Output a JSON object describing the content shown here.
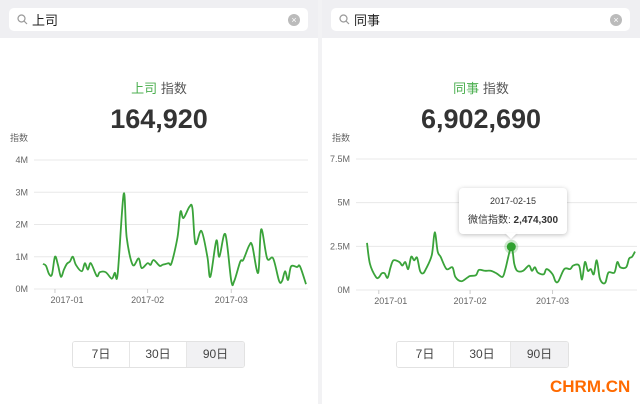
{
  "panels": [
    {
      "query": "上司",
      "title_keyword": "上司",
      "title_suffix": "指数",
      "total": "164,920",
      "buttons": [
        {
          "label": "7日",
          "selected": false
        },
        {
          "label": "30日",
          "selected": false
        },
        {
          "label": "90日",
          "selected": true
        }
      ]
    },
    {
      "query": "同事",
      "title_keyword": "同事",
      "title_suffix": "指数",
      "total": "6,902,690",
      "buttons": [
        {
          "label": "7日",
          "selected": false
        },
        {
          "label": "30日",
          "selected": false
        },
        {
          "label": "90日",
          "selected": true
        }
      ],
      "tooltip": {
        "date": "2017-02-15",
        "label": "微信指数:",
        "value": "2,474,300"
      }
    }
  ],
  "icons": {
    "search": "search-icon",
    "clear": "clear-icon"
  },
  "colors": {
    "line": "#3aa33a",
    "keyword": "#4caf50",
    "watermark": "#ff6a00"
  },
  "watermark": "CHRM.CN",
  "chart_data": [
    {
      "type": "line",
      "ylabel": "指数",
      "yticks": [
        0,
        1000000,
        2000000,
        3000000,
        4000000
      ],
      "ytick_labels": [
        "0M",
        "1M",
        "2M",
        "3M",
        "4M"
      ],
      "ylim": [
        0,
        4000000
      ],
      "xticks": [
        "2017-01-01",
        "2017-02-01",
        "2017-03-01"
      ],
      "xtick_labels": [
        "2017-01",
        "2017-02",
        "2017-03"
      ],
      "xlim": [
        "2016-12-28",
        "2017-03-26"
      ],
      "grid": true,
      "points": [
        [
          "2016-12-28",
          780000
        ],
        [
          "2016-12-29",
          720000
        ],
        [
          "2016-12-30",
          470000
        ],
        [
          "2016-12-31",
          450000
        ],
        [
          "2017-01-01",
          1000000
        ],
        [
          "2017-01-02",
          750000
        ],
        [
          "2017-01-03",
          380000
        ],
        [
          "2017-01-04",
          600000
        ],
        [
          "2017-01-05",
          780000
        ],
        [
          "2017-01-06",
          850000
        ],
        [
          "2017-01-07",
          1000000
        ],
        [
          "2017-01-08",
          750000
        ],
        [
          "2017-01-10",
          550000
        ],
        [
          "2017-01-11",
          800000
        ],
        [
          "2017-01-12",
          600000
        ],
        [
          "2017-01-13",
          800000
        ],
        [
          "2017-01-15",
          400000
        ],
        [
          "2017-01-16",
          520000
        ],
        [
          "2017-01-18",
          520000
        ],
        [
          "2017-01-20",
          320000
        ],
        [
          "2017-01-21",
          500000
        ],
        [
          "2017-01-22",
          480000
        ],
        [
          "2017-01-24",
          2950000
        ],
        [
          "2017-01-25",
          1600000
        ],
        [
          "2017-01-27",
          750000
        ],
        [
          "2017-01-29",
          950000
        ],
        [
          "2017-01-30",
          650000
        ],
        [
          "2017-02-01",
          800000
        ],
        [
          "2017-02-02",
          750000
        ],
        [
          "2017-02-03",
          900000
        ],
        [
          "2017-02-05",
          720000
        ],
        [
          "2017-02-06",
          750000
        ],
        [
          "2017-02-08",
          800000
        ],
        [
          "2017-02-09",
          800000
        ],
        [
          "2017-02-11",
          1600000
        ],
        [
          "2017-02-12",
          2400000
        ],
        [
          "2017-02-13",
          2200000
        ],
        [
          "2017-02-15",
          2550000
        ],
        [
          "2017-02-16",
          2500000
        ],
        [
          "2017-02-17",
          1400000
        ],
        [
          "2017-02-19",
          1800000
        ],
        [
          "2017-02-21",
          1000000
        ],
        [
          "2017-02-22",
          380000
        ],
        [
          "2017-02-24",
          1500000
        ],
        [
          "2017-02-25",
          1000000
        ],
        [
          "2017-02-27",
          1700000
        ],
        [
          "2017-03-01",
          250000
        ],
        [
          "2017-03-02",
          250000
        ],
        [
          "2017-03-04",
          850000
        ],
        [
          "2017-03-05",
          900000
        ],
        [
          "2017-03-07",
          1350000
        ],
        [
          "2017-03-08",
          1350000
        ],
        [
          "2017-03-10",
          500000
        ],
        [
          "2017-03-11",
          1850000
        ],
        [
          "2017-03-13",
          950000
        ],
        [
          "2017-03-15",
          950000
        ],
        [
          "2017-03-17",
          250000
        ],
        [
          "2017-03-18",
          250000
        ],
        [
          "2017-03-19",
          550000
        ],
        [
          "2017-03-20",
          280000
        ],
        [
          "2017-03-21",
          700000
        ],
        [
          "2017-03-23",
          680000
        ],
        [
          "2017-03-24",
          700000
        ],
        [
          "2017-03-26",
          150000
        ]
      ]
    },
    {
      "type": "line",
      "ylabel": "指数",
      "yticks": [
        0,
        2500000,
        5000000,
        7500000
      ],
      "ytick_labels": [
        "0M",
        "2.5M",
        "5M",
        "7.5M"
      ],
      "ylim": [
        0,
        7500000
      ],
      "xticks": [
        "2017-01-01",
        "2017-02-01",
        "2017-03-01"
      ],
      "xtick_labels": [
        "2017-01",
        "2017-02",
        "2017-03"
      ],
      "xlim": [
        "2016-12-28",
        "2017-03-29"
      ],
      "grid": true,
      "highlight": [
        "2017-02-15",
        2474300
      ],
      "points": [
        [
          "2016-12-28",
          2700000
        ],
        [
          "2016-12-29",
          1500000
        ],
        [
          "2016-12-31",
          750000
        ],
        [
          "2017-01-01",
          720000
        ],
        [
          "2017-01-02",
          950000
        ],
        [
          "2017-01-03",
          950000
        ],
        [
          "2017-01-04",
          700000
        ],
        [
          "2017-01-05",
          1300000
        ],
        [
          "2017-01-06",
          1700000
        ],
        [
          "2017-01-08",
          1600000
        ],
        [
          "2017-01-09",
          1400000
        ],
        [
          "2017-01-10",
          1600000
        ],
        [
          "2017-01-11",
          1200000
        ],
        [
          "2017-01-12",
          1900000
        ],
        [
          "2017-01-13",
          1700000
        ],
        [
          "2017-01-14",
          1850000
        ],
        [
          "2017-01-15",
          1100000
        ],
        [
          "2017-01-16",
          950000
        ],
        [
          "2017-01-17",
          1200000
        ],
        [
          "2017-01-19",
          2000000
        ],
        [
          "2017-01-20",
          3300000
        ],
        [
          "2017-01-21",
          2200000
        ],
        [
          "2017-01-22",
          1900000
        ],
        [
          "2017-01-24",
          1200000
        ],
        [
          "2017-01-26",
          1300000
        ],
        [
          "2017-01-27",
          750000
        ],
        [
          "2017-01-29",
          500000
        ],
        [
          "2017-01-31",
          700000
        ],
        [
          "2017-02-01",
          800000
        ],
        [
          "2017-02-03",
          850000
        ],
        [
          "2017-02-04",
          1150000
        ],
        [
          "2017-02-06",
          1100000
        ],
        [
          "2017-02-08",
          1100000
        ],
        [
          "2017-02-10",
          950000
        ],
        [
          "2017-02-12",
          750000
        ],
        [
          "2017-02-13",
          1200000
        ],
        [
          "2017-02-15",
          2474300
        ],
        [
          "2017-02-16",
          1500000
        ],
        [
          "2017-02-17",
          1100000
        ],
        [
          "2017-02-19",
          1100000
        ],
        [
          "2017-02-21",
          1400000
        ],
        [
          "2017-02-22",
          1100000
        ],
        [
          "2017-02-23",
          1300000
        ],
        [
          "2017-02-24",
          1000000
        ],
        [
          "2017-02-26",
          900000
        ],
        [
          "2017-02-27",
          1200000
        ],
        [
          "2017-03-01",
          900000
        ],
        [
          "2017-03-02",
          500000
        ],
        [
          "2017-03-03",
          500000
        ],
        [
          "2017-03-05",
          1200000
        ],
        [
          "2017-03-07",
          1200000
        ],
        [
          "2017-03-08",
          1400000
        ],
        [
          "2017-03-10",
          1400000
        ],
        [
          "2017-03-11",
          600000
        ],
        [
          "2017-03-12",
          1600000
        ],
        [
          "2017-03-13",
          1100000
        ],
        [
          "2017-03-14",
          1200000
        ],
        [
          "2017-03-15",
          900000
        ],
        [
          "2017-03-16",
          1700000
        ],
        [
          "2017-03-17",
          700000
        ],
        [
          "2017-03-18",
          400000
        ],
        [
          "2017-03-19",
          450000
        ],
        [
          "2017-03-20",
          1000000
        ],
        [
          "2017-03-22",
          1000000
        ],
        [
          "2017-03-23",
          1600000
        ],
        [
          "2017-03-24",
          1300000
        ],
        [
          "2017-03-26",
          1300000
        ],
        [
          "2017-03-27",
          1800000
        ],
        [
          "2017-03-28",
          1900000
        ],
        [
          "2017-03-29",
          2200000
        ]
      ]
    }
  ]
}
